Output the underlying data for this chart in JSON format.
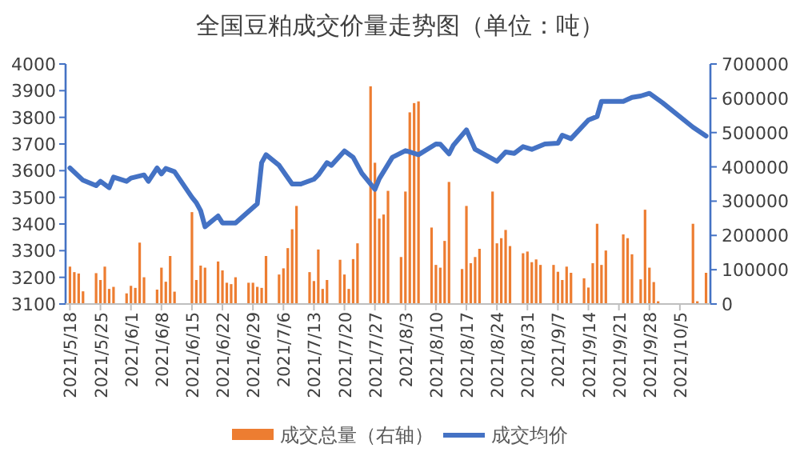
{
  "chart_data": {
    "type": "bar",
    "title": "全国豆粕成交价量走势图（单位：吨）",
    "legend": "bottom",
    "xlim": [
      "2021-05-17",
      "2021-10-12"
    ],
    "xticks": [
      {
        "value": "2021-05-18",
        "label": "2021/5/18"
      },
      {
        "value": "2021-05-25",
        "label": "2021/5/25"
      },
      {
        "value": "2021-06-01",
        "label": "2021/6/1"
      },
      {
        "value": "2021-06-08",
        "label": "2021/6/8"
      },
      {
        "value": "2021-06-15",
        "label": "2021/6/15"
      },
      {
        "value": "2021-06-22",
        "label": "2021/6/22"
      },
      {
        "value": "2021-06-29",
        "label": "2021/6/29"
      },
      {
        "value": "2021-07-06",
        "label": "2021/7/6"
      },
      {
        "value": "2021-07-13",
        "label": "2021/7/13"
      },
      {
        "value": "2021-07-20",
        "label": "2021/7/20"
      },
      {
        "value": "2021-07-27",
        "label": "2021/7/27"
      },
      {
        "value": "2021-08-03",
        "label": "2021/8/3"
      },
      {
        "value": "2021-08-10",
        "label": "2021/8/10"
      },
      {
        "value": "2021-08-17",
        "label": "2021/8/17"
      },
      {
        "value": "2021-08-24",
        "label": "2021/8/24"
      },
      {
        "value": "2021-08-31",
        "label": "2021/8/31"
      },
      {
        "value": "2021-09-07",
        "label": "2021/9/7"
      },
      {
        "value": "2021-09-14",
        "label": "2021/9/14"
      },
      {
        "value": "2021-09-21",
        "label": "2021/9/21"
      },
      {
        "value": "2021-09-28",
        "label": "2021/9/28"
      },
      {
        "value": "2021-10-05",
        "label": "2021/10/5"
      }
    ],
    "ylim": [
      3100,
      4000
    ],
    "yticks": [
      3100,
      3200,
      3300,
      3400,
      3500,
      3600,
      3700,
      3800,
      3900,
      4000
    ],
    "y2lim": [
      0,
      700000
    ],
    "y2ticks": [
      0,
      100000,
      200000,
      300000,
      400000,
      500000,
      600000,
      700000
    ],
    "series": [
      {
        "name": "成交总量（右轴）",
        "axis": "y2",
        "color": "#ed7d31",
        "x": [
          "2021-05-18",
          "2021-05-19",
          "2021-05-20",
          "2021-05-21",
          "2021-05-24",
          "2021-05-25",
          "2021-05-26",
          "2021-05-27",
          "2021-05-28",
          "2021-05-31",
          "2021-06-01",
          "2021-06-02",
          "2021-06-03",
          "2021-06-04",
          "2021-06-07",
          "2021-06-08",
          "2021-06-09",
          "2021-06-10",
          "2021-06-11",
          "2021-06-15",
          "2021-06-16",
          "2021-06-17",
          "2021-06-18",
          "2021-06-21",
          "2021-06-22",
          "2021-06-23",
          "2021-06-24",
          "2021-06-25",
          "2021-06-28",
          "2021-06-29",
          "2021-06-30",
          "2021-07-01",
          "2021-07-02",
          "2021-07-05",
          "2021-07-06",
          "2021-07-07",
          "2021-07-08",
          "2021-07-09",
          "2021-07-12",
          "2021-07-13",
          "2021-07-14",
          "2021-07-15",
          "2021-07-16",
          "2021-07-19",
          "2021-07-20",
          "2021-07-21",
          "2021-07-22",
          "2021-07-23",
          "2021-07-26",
          "2021-07-27",
          "2021-07-28",
          "2021-07-29",
          "2021-07-30",
          "2021-08-02",
          "2021-08-03",
          "2021-08-04",
          "2021-08-05",
          "2021-08-06",
          "2021-08-09",
          "2021-08-10",
          "2021-08-11",
          "2021-08-12",
          "2021-08-13",
          "2021-08-16",
          "2021-08-17",
          "2021-08-18",
          "2021-08-19",
          "2021-08-20",
          "2021-08-23",
          "2021-08-24",
          "2021-08-25",
          "2021-08-26",
          "2021-08-27",
          "2021-08-30",
          "2021-08-31",
          "2021-09-01",
          "2021-09-02",
          "2021-09-03",
          "2021-09-06",
          "2021-09-07",
          "2021-09-08",
          "2021-09-09",
          "2021-09-10",
          "2021-09-13",
          "2021-09-14",
          "2021-09-15",
          "2021-09-16",
          "2021-09-17",
          "2021-09-18",
          "2021-09-22",
          "2021-09-23",
          "2021-09-24",
          "2021-09-26",
          "2021-09-27",
          "2021-09-28",
          "2021-09-29",
          "2021-09-30",
          "2021-10-08",
          "2021-10-09",
          "2021-10-11"
        ],
        "values": [
          109000,
          93000,
          89000,
          37000,
          90000,
          70000,
          109000,
          44000,
          50000,
          31000,
          53000,
          47000,
          179000,
          78000,
          42000,
          106000,
          65000,
          140000,
          36000,
          268000,
          70000,
          112000,
          106000,
          124000,
          98000,
          62000,
          58000,
          78000,
          62000,
          62000,
          50000,
          47000,
          140000,
          86000,
          104000,
          163000,
          218000,
          286000,
          93000,
          67000,
          159000,
          44000,
          70000,
          129000,
          86000,
          44000,
          131000,
          177000,
          635000,
          412000,
          249000,
          261000,
          330000,
          137000,
          328000,
          559000,
          586000,
          591000,
          223000,
          114000,
          106000,
          184000,
          356000,
          102000,
          286000,
          119000,
          137000,
          161000,
          328000,
          177000,
          192000,
          216000,
          169000,
          148000,
          153000,
          122000,
          130000,
          114000,
          114000,
          94000,
          70000,
          109000,
          91000,
          75000,
          48000,
          119000,
          234000,
          114000,
          156000,
          203000,
          192000,
          145000,
          72000,
          275000,
          106000,
          64000,
          8000,
          234000,
          8000,
          91000
        ]
      },
      {
        "name": "成交均价",
        "type": "line",
        "axis": "y",
        "color": "#4472c4",
        "x": [
          "2021-05-18",
          "2021-05-21",
          "2021-05-24",
          "2021-05-25",
          "2021-05-27",
          "2021-05-28",
          "2021-05-31",
          "2021-06-01",
          "2021-06-04",
          "2021-06-05",
          "2021-06-07",
          "2021-06-08",
          "2021-06-09",
          "2021-06-11",
          "2021-06-15",
          "2021-06-16",
          "2021-06-17",
          "2021-06-18",
          "2021-06-21",
          "2021-06-22",
          "2021-06-25",
          "2021-06-30",
          "2021-07-01",
          "2021-07-02",
          "2021-07-05",
          "2021-07-08",
          "2021-07-10",
          "2021-07-13",
          "2021-07-14",
          "2021-07-16",
          "2021-07-17",
          "2021-07-20",
          "2021-07-22",
          "2021-07-24",
          "2021-07-27",
          "2021-07-28",
          "2021-07-31",
          "2021-08-03",
          "2021-08-06",
          "2021-08-10",
          "2021-08-11",
          "2021-08-13",
          "2021-08-14",
          "2021-08-17",
          "2021-08-19",
          "2021-08-24",
          "2021-08-26",
          "2021-08-28",
          "2021-08-30",
          "2021-09-01",
          "2021-09-04",
          "2021-09-07",
          "2021-09-08",
          "2021-09-10",
          "2021-09-14",
          "2021-09-16",
          "2021-09-17",
          "2021-09-22",
          "2021-09-24",
          "2021-09-26",
          "2021-09-28",
          "2021-10-01",
          "2021-10-08",
          "2021-10-11"
        ],
        "values": [
          3610,
          3564,
          3544,
          3560,
          3536,
          3576,
          3560,
          3572,
          3584,
          3560,
          3610,
          3588,
          3608,
          3596,
          3500,
          3480,
          3450,
          3390,
          3430,
          3404,
          3404,
          3476,
          3630,
          3660,
          3620,
          3550,
          3550,
          3568,
          3584,
          3630,
          3620,
          3674,
          3650,
          3590,
          3530,
          3570,
          3650,
          3675,
          3660,
          3700,
          3699,
          3663,
          3695,
          3753,
          3680,
          3635,
          3670,
          3665,
          3690,
          3680,
          3700,
          3703,
          3733,
          3720,
          3790,
          3803,
          3860,
          3860,
          3875,
          3880,
          3890,
          3855,
          3763,
          3730
        ]
      }
    ]
  }
}
